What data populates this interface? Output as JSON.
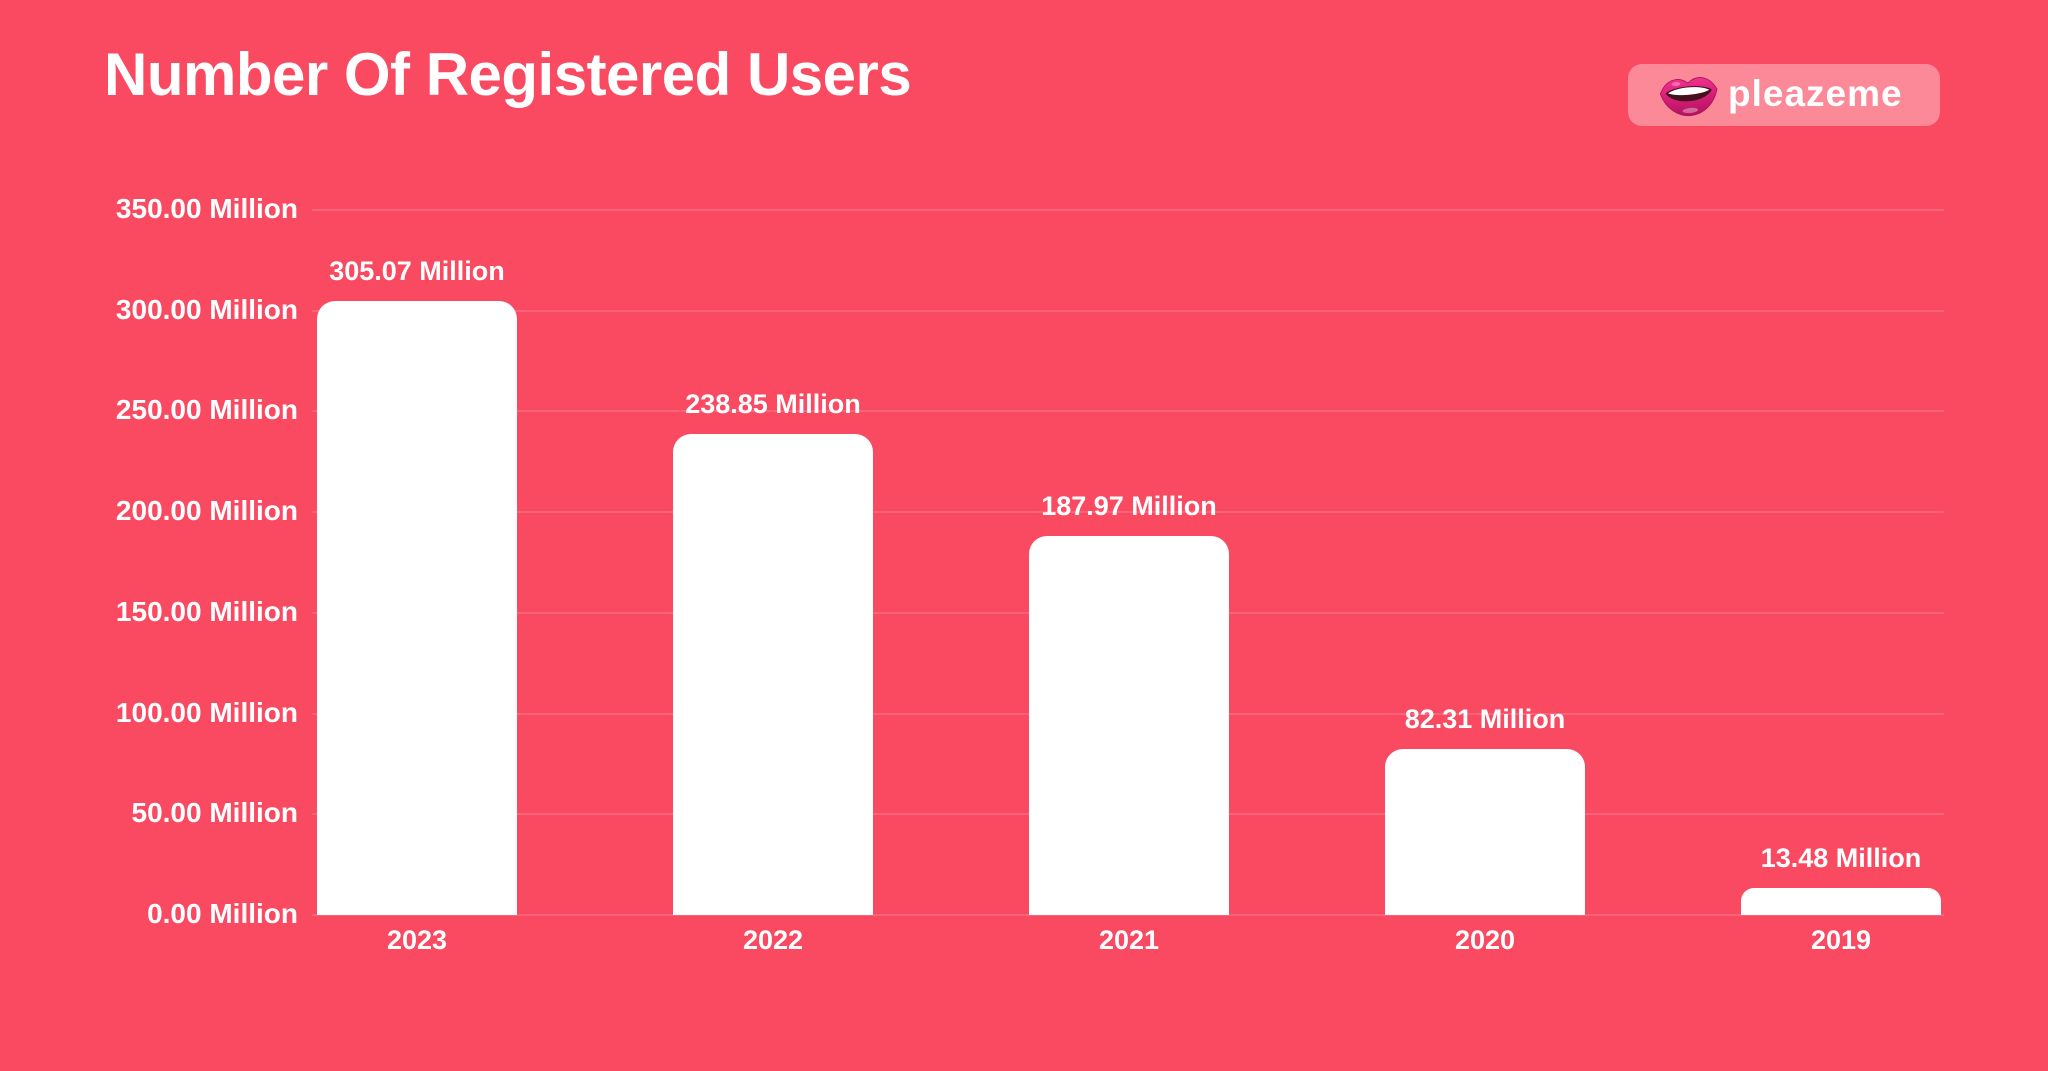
{
  "page": {
    "background_color": "#FA4A62",
    "grid_color": "rgba(255,255,255,0.14)",
    "text_color": "#FFFFFF"
  },
  "header": {
    "title": "Number Of Registered Users",
    "logo": {
      "text": "pleazeme",
      "icon": "lips-icon",
      "badge_color": "rgba(255,255,255,0.35)"
    }
  },
  "chart_data": {
    "type": "bar",
    "title": "Number Of Registered Users",
    "categories": [
      "2023",
      "2022",
      "2021",
      "2020",
      "2019"
    ],
    "values": [
      305.07,
      238.85,
      187.97,
      82.31,
      13.48
    ],
    "value_labels": [
      "305.07 Million",
      "238.85 Million",
      "187.97 Million",
      "82.31 Million",
      "13.48 Million"
    ],
    "unit": "Million",
    "bar_color": "#FFFFFF",
    "xlabel": "",
    "ylabel": "",
    "ylim": [
      0,
      350
    ],
    "y_tick_values": [
      350,
      300,
      250,
      200,
      150,
      100,
      50,
      0
    ],
    "y_tick_labels": [
      "350.00 Million",
      "300.00 Million",
      "250.00 Million",
      "200.00 Million",
      "150.00 Million",
      "100.00 Million",
      "50.00 Million",
      "0.00 Million"
    ],
    "grid": "horizontal",
    "legend_position": "none"
  }
}
